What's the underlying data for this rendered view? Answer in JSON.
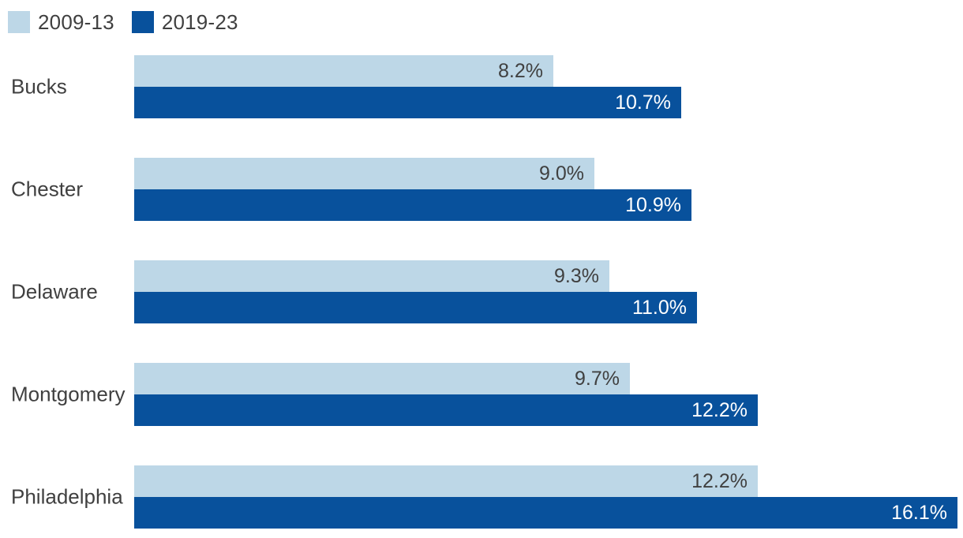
{
  "colors": {
    "series_light": "#bdd7e7",
    "series_dark": "#08519c",
    "category_text": "#404040",
    "value_text_on_light": "#404040",
    "value_text_on_dark": "#ffffff",
    "background": "#ffffff"
  },
  "legend": {
    "items": [
      {
        "label": "2009-13"
      },
      {
        "label": "2019-23"
      }
    ]
  },
  "chart_data": {
    "type": "bar",
    "orientation": "horizontal",
    "title": "",
    "xlabel": "",
    "ylabel": "",
    "categories": [
      "Bucks",
      "Chester",
      "Delaware",
      "Montgomery",
      "Philadelphia"
    ],
    "series": [
      {
        "name": "2009-13",
        "values": [
          8.2,
          9.0,
          9.3,
          9.7,
          12.2
        ]
      },
      {
        "name": "2019-23",
        "values": [
          10.7,
          10.9,
          11.0,
          12.2,
          16.1
        ]
      }
    ],
    "value_labels": {
      "series_2009_13": [
        "8.2%",
        "9.0%",
        "9.3%",
        "9.7%",
        "12.2%"
      ],
      "series_2019_23": [
        "10.7%",
        "10.9%",
        "11.0%",
        "12.2%",
        "16.1%"
      ]
    },
    "value_suffix": "%",
    "xlim": [
      0,
      16.1
    ],
    "grid": false,
    "axes_visible": false,
    "legend_position": "top-left"
  }
}
